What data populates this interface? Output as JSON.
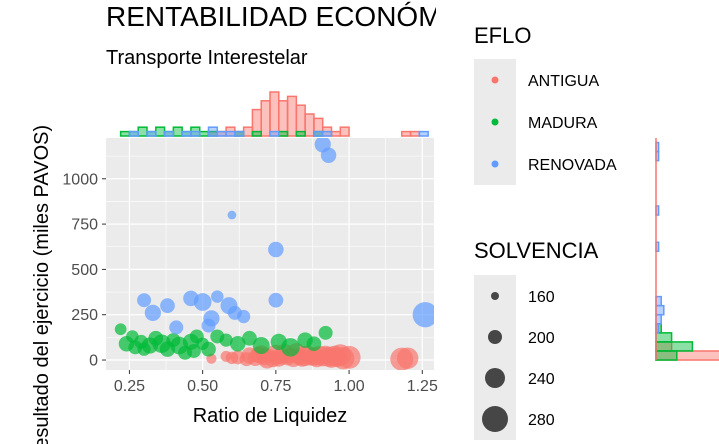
{
  "chart_data": {
    "type": "scatter",
    "title": "RENTABILIDAD ECONÓMICA",
    "subtitle": "Transporte Interestelar",
    "xlabel": "Ratio de Liquidez",
    "ylabel": "Resultado del ejercicio (miles PAVOS)",
    "xlim": [
      0.17,
      1.29
    ],
    "ylim": [
      -55,
      1225
    ],
    "xticks": [
      "0.25",
      "0.50",
      "0.75",
      "1.00",
      "1.25"
    ],
    "xtick_values": [
      0.25,
      0.5,
      0.75,
      1.0,
      1.25
    ],
    "yticks": [
      "0",
      "250",
      "500",
      "750",
      "1000"
    ],
    "ytick_values": [
      0,
      250,
      500,
      750,
      1000
    ],
    "grid": true,
    "color_legend": {
      "title": "EFLO",
      "placement": "right",
      "items": [
        {
          "label": "ANTIGUA",
          "color": "#F8766D"
        },
        {
          "label": "MADURA",
          "color": "#00BA38"
        },
        {
          "label": "RENOVADA",
          "color": "#619CFF"
        }
      ]
    },
    "size_legend": {
      "title": "SOLVENCIA",
      "placement": "right",
      "items": [
        {
          "label": "160",
          "value": 160
        },
        {
          "label": "200",
          "value": 200
        },
        {
          "label": "240",
          "value": 240
        },
        {
          "label": "280",
          "value": 280
        }
      ]
    },
    "marginal_x_histograms": [
      {
        "name": "ANTIGUA",
        "bins": [
          [
            0.22,
            0.25,
            0
          ],
          [
            0.52,
            0.55,
            1
          ],
          [
            0.55,
            0.58,
            1
          ],
          [
            0.58,
            0.61,
            2
          ],
          [
            0.61,
            0.64,
            1
          ],
          [
            0.64,
            0.67,
            2
          ],
          [
            0.67,
            0.7,
            6
          ],
          [
            0.7,
            0.73,
            8
          ],
          [
            0.73,
            0.76,
            10
          ],
          [
            0.76,
            0.79,
            8
          ],
          [
            0.79,
            0.82,
            9
          ],
          [
            0.82,
            0.85,
            7
          ],
          [
            0.85,
            0.88,
            5
          ],
          [
            0.88,
            0.91,
            4
          ],
          [
            0.91,
            0.94,
            2
          ],
          [
            0.94,
            0.97,
            1
          ],
          [
            0.97,
            1.0,
            2
          ],
          [
            1.18,
            1.21,
            1
          ],
          [
            1.21,
            1.24,
            1
          ]
        ]
      },
      {
        "name": "MADURA",
        "bins": [
          [
            0.22,
            0.25,
            1
          ],
          [
            0.25,
            0.28,
            1
          ],
          [
            0.28,
            0.31,
            2
          ],
          [
            0.31,
            0.34,
            1
          ],
          [
            0.34,
            0.37,
            2
          ],
          [
            0.37,
            0.4,
            1
          ],
          [
            0.4,
            0.43,
            2
          ],
          [
            0.43,
            0.46,
            1
          ],
          [
            0.46,
            0.49,
            2
          ],
          [
            0.49,
            0.52,
            1
          ],
          [
            0.52,
            0.55,
            1
          ],
          [
            0.61,
            0.64,
            1
          ],
          [
            0.67,
            0.7,
            1
          ],
          [
            0.76,
            0.79,
            1
          ],
          [
            0.82,
            0.85,
            1
          ],
          [
            0.88,
            0.91,
            1
          ]
        ]
      },
      {
        "name": "RENOVADA",
        "bins": [
          [
            0.25,
            0.28,
            1
          ],
          [
            0.31,
            0.34,
            1
          ],
          [
            0.37,
            0.4,
            1
          ],
          [
            0.43,
            0.46,
            1
          ],
          [
            0.46,
            0.49,
            1
          ],
          [
            0.52,
            0.55,
            2
          ],
          [
            0.55,
            0.58,
            1
          ],
          [
            0.58,
            0.61,
            1
          ],
          [
            0.61,
            0.64,
            1
          ],
          [
            0.73,
            0.76,
            1
          ],
          [
            0.88,
            0.91,
            1
          ],
          [
            0.91,
            0.94,
            1
          ],
          [
            1.24,
            1.27,
            1
          ]
        ]
      }
    ],
    "marginal_y_histograms": [
      {
        "name": "ANTIGUA",
        "bins": [
          [
            0,
            50,
            40
          ],
          [
            50,
            100,
            6
          ]
        ]
      },
      {
        "name": "MADURA",
        "bins": [
          [
            0,
            50,
            8
          ],
          [
            50,
            100,
            14
          ],
          [
            100,
            150,
            6
          ],
          [
            150,
            200,
            2
          ]
        ]
      },
      {
        "name": "RENOVADA",
        "bins": [
          [
            150,
            200,
            1
          ],
          [
            200,
            250,
            2
          ],
          [
            250,
            300,
            3
          ],
          [
            300,
            350,
            2
          ],
          [
            600,
            650,
            1
          ],
          [
            800,
            850,
            1
          ],
          [
            1100,
            1150,
            1
          ],
          [
            1150,
            1200,
            1
          ]
        ]
      }
    ],
    "series": [
      {
        "name": "ANTIGUA",
        "color": "#F8766D",
        "points": [
          {
            "x": 0.53,
            "y": 8,
            "size": 175
          },
          {
            "x": 0.58,
            "y": 20,
            "size": 180
          },
          {
            "x": 0.62,
            "y": 15,
            "size": 200
          },
          {
            "x": 0.66,
            "y": 25,
            "size": 215
          },
          {
            "x": 0.68,
            "y": 10,
            "size": 210
          },
          {
            "x": 0.7,
            "y": 30,
            "size": 230
          },
          {
            "x": 0.71,
            "y": 18,
            "size": 220
          },
          {
            "x": 0.73,
            "y": 22,
            "size": 200
          },
          {
            "x": 0.74,
            "y": 5,
            "size": 215
          },
          {
            "x": 0.75,
            "y": 30,
            "size": 240
          },
          {
            "x": 0.76,
            "y": 12,
            "size": 225
          },
          {
            "x": 0.77,
            "y": 20,
            "size": 215
          },
          {
            "x": 0.78,
            "y": 35,
            "size": 235
          },
          {
            "x": 0.79,
            "y": 15,
            "size": 215
          },
          {
            "x": 0.8,
            "y": 25,
            "size": 210
          },
          {
            "x": 0.81,
            "y": 10,
            "size": 225
          },
          {
            "x": 0.82,
            "y": 40,
            "size": 235
          },
          {
            "x": 0.83,
            "y": 18,
            "size": 220
          },
          {
            "x": 0.84,
            "y": 8,
            "size": 215
          },
          {
            "x": 0.85,
            "y": 22,
            "size": 240
          },
          {
            "x": 0.86,
            "y": 30,
            "size": 225
          },
          {
            "x": 0.87,
            "y": 14,
            "size": 215
          },
          {
            "x": 0.88,
            "y": 20,
            "size": 230
          },
          {
            "x": 0.89,
            "y": 5,
            "size": 215
          },
          {
            "x": 0.9,
            "y": 25,
            "size": 235
          },
          {
            "x": 0.91,
            "y": 12,
            "size": 220
          },
          {
            "x": 0.92,
            "y": 30,
            "size": 225
          },
          {
            "x": 0.93,
            "y": 18,
            "size": 240
          },
          {
            "x": 0.94,
            "y": 8,
            "size": 230
          },
          {
            "x": 0.95,
            "y": 22,
            "size": 245
          },
          {
            "x": 0.96,
            "y": 15,
            "size": 235
          },
          {
            "x": 0.97,
            "y": 28,
            "size": 250
          },
          {
            "x": 0.98,
            "y": 10,
            "size": 255
          },
          {
            "x": 1.0,
            "y": 15,
            "size": 260
          },
          {
            "x": 0.72,
            "y": 2,
            "size": 225
          },
          {
            "x": 0.69,
            "y": 28,
            "size": 215
          },
          {
            "x": 0.65,
            "y": 5,
            "size": 200
          },
          {
            "x": 0.6,
            "y": 12,
            "size": 190
          },
          {
            "x": 1.18,
            "y": 5,
            "size": 260
          },
          {
            "x": 1.2,
            "y": 10,
            "size": 250
          }
        ]
      },
      {
        "name": "MADURA",
        "color": "#00BA38",
        "points": [
          {
            "x": 0.22,
            "y": 170,
            "size": 185
          },
          {
            "x": 0.24,
            "y": 90,
            "size": 210
          },
          {
            "x": 0.26,
            "y": 130,
            "size": 190
          },
          {
            "x": 0.29,
            "y": 100,
            "size": 200
          },
          {
            "x": 0.32,
            "y": 80,
            "size": 215
          },
          {
            "x": 0.34,
            "y": 120,
            "size": 205
          },
          {
            "x": 0.36,
            "y": 90,
            "size": 230
          },
          {
            "x": 0.38,
            "y": 60,
            "size": 210
          },
          {
            "x": 0.4,
            "y": 110,
            "size": 200
          },
          {
            "x": 0.42,
            "y": 80,
            "size": 225
          },
          {
            "x": 0.44,
            "y": 40,
            "size": 200
          },
          {
            "x": 0.46,
            "y": 100,
            "size": 215
          },
          {
            "x": 0.48,
            "y": 130,
            "size": 200
          },
          {
            "x": 0.5,
            "y": 90,
            "size": 190
          },
          {
            "x": 0.52,
            "y": 60,
            "size": 205
          },
          {
            "x": 0.55,
            "y": 130,
            "size": 200
          },
          {
            "x": 0.58,
            "y": 110,
            "size": 195
          },
          {
            "x": 0.62,
            "y": 90,
            "size": 210
          },
          {
            "x": 0.66,
            "y": 120,
            "size": 205
          },
          {
            "x": 0.7,
            "y": 80,
            "size": 220
          },
          {
            "x": 0.76,
            "y": 100,
            "size": 215
          },
          {
            "x": 0.8,
            "y": 70,
            "size": 230
          },
          {
            "x": 0.85,
            "y": 110,
            "size": 210
          },
          {
            "x": 0.88,
            "y": 90,
            "size": 205
          },
          {
            "x": 0.92,
            "y": 150,
            "size": 200
          },
          {
            "x": 0.3,
            "y": 60,
            "size": 195
          },
          {
            "x": 0.27,
            "y": 70,
            "size": 200
          },
          {
            "x": 0.47,
            "y": 50,
            "size": 200
          }
        ]
      },
      {
        "name": "RENOVADA",
        "color": "#619CFF",
        "points": [
          {
            "x": 0.3,
            "y": 330,
            "size": 200
          },
          {
            "x": 0.33,
            "y": 260,
            "size": 215
          },
          {
            "x": 0.38,
            "y": 300,
            "size": 205
          },
          {
            "x": 0.41,
            "y": 180,
            "size": 200
          },
          {
            "x": 0.46,
            "y": 340,
            "size": 210
          },
          {
            "x": 0.5,
            "y": 320,
            "size": 225
          },
          {
            "x": 0.53,
            "y": 230,
            "size": 215
          },
          {
            "x": 0.55,
            "y": 350,
            "size": 190
          },
          {
            "x": 0.59,
            "y": 300,
            "size": 220
          },
          {
            "x": 0.61,
            "y": 260,
            "size": 200
          },
          {
            "x": 0.64,
            "y": 240,
            "size": 195
          },
          {
            "x": 0.75,
            "y": 330,
            "size": 205
          },
          {
            "x": 0.75,
            "y": 610,
            "size": 210
          },
          {
            "x": 0.6,
            "y": 800,
            "size": 165
          },
          {
            "x": 0.91,
            "y": 1190,
            "size": 215
          },
          {
            "x": 0.93,
            "y": 1130,
            "size": 210
          },
          {
            "x": 1.26,
            "y": 250,
            "size": 275
          },
          {
            "x": 0.52,
            "y": 190,
            "size": 200
          }
        ]
      }
    ]
  }
}
